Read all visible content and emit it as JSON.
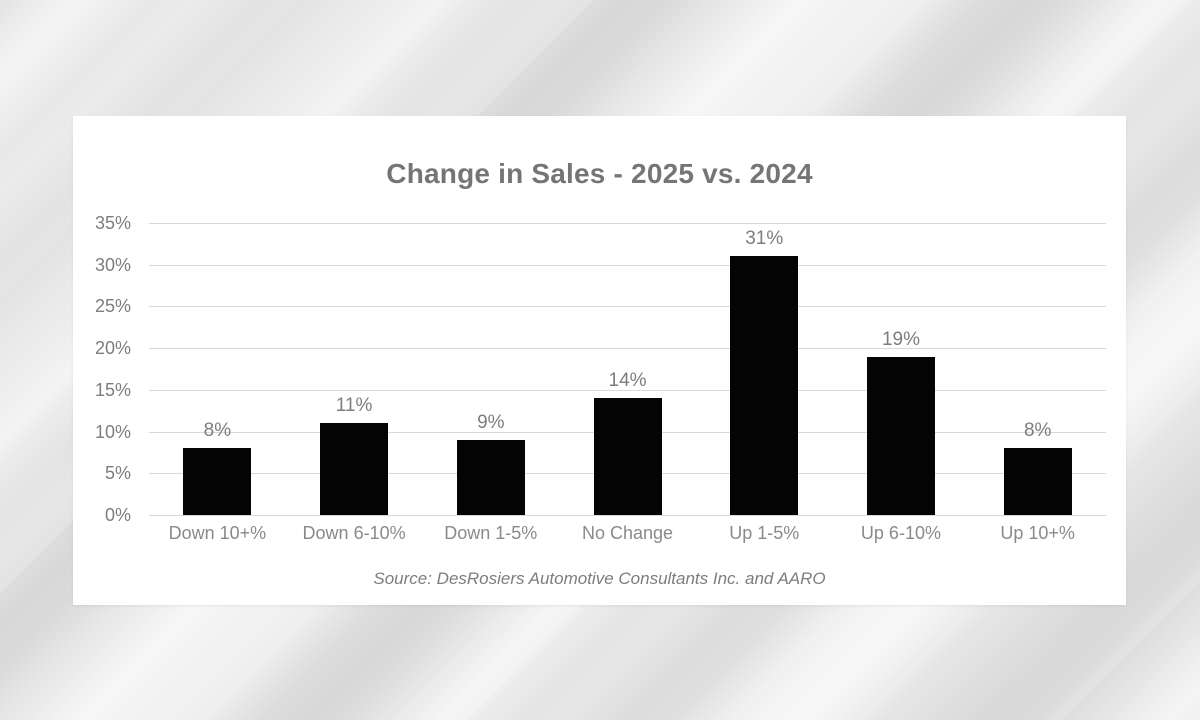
{
  "page": {
    "background_base_color": "#e9e9e9",
    "card_color": "#ffffff"
  },
  "chart_data": {
    "type": "bar",
    "title": "Change in Sales - 2025 vs. 2024",
    "categories": [
      "Down 10+%",
      "Down 6-10%",
      "Down 1-5%",
      "No Change",
      "Up 1-5%",
      "Up 6-10%",
      "Up 10+%"
    ],
    "values": [
      8,
      11,
      9,
      14,
      31,
      19,
      8
    ],
    "data_labels": [
      "8%",
      "11%",
      "9%",
      "14%",
      "31%",
      "19%",
      "8%"
    ],
    "xlabel": "",
    "ylabel": "",
    "y_axis": {
      "ticks": [
        "35%",
        "30%",
        "25%",
        "20%",
        "15%",
        "10%",
        "5%",
        "0%"
      ],
      "min": 0,
      "max": 35,
      "step": 5
    },
    "grid": true,
    "legend_position": "none",
    "colors": {
      "bar": "#040404",
      "gridline": "#d9d9d9",
      "title": "#757575",
      "tick_label": "#7d7d7d",
      "category_label": "#8a8a8a"
    },
    "source_note": "Source: DesRosiers Automotive Consultants Inc. and AARO"
  }
}
